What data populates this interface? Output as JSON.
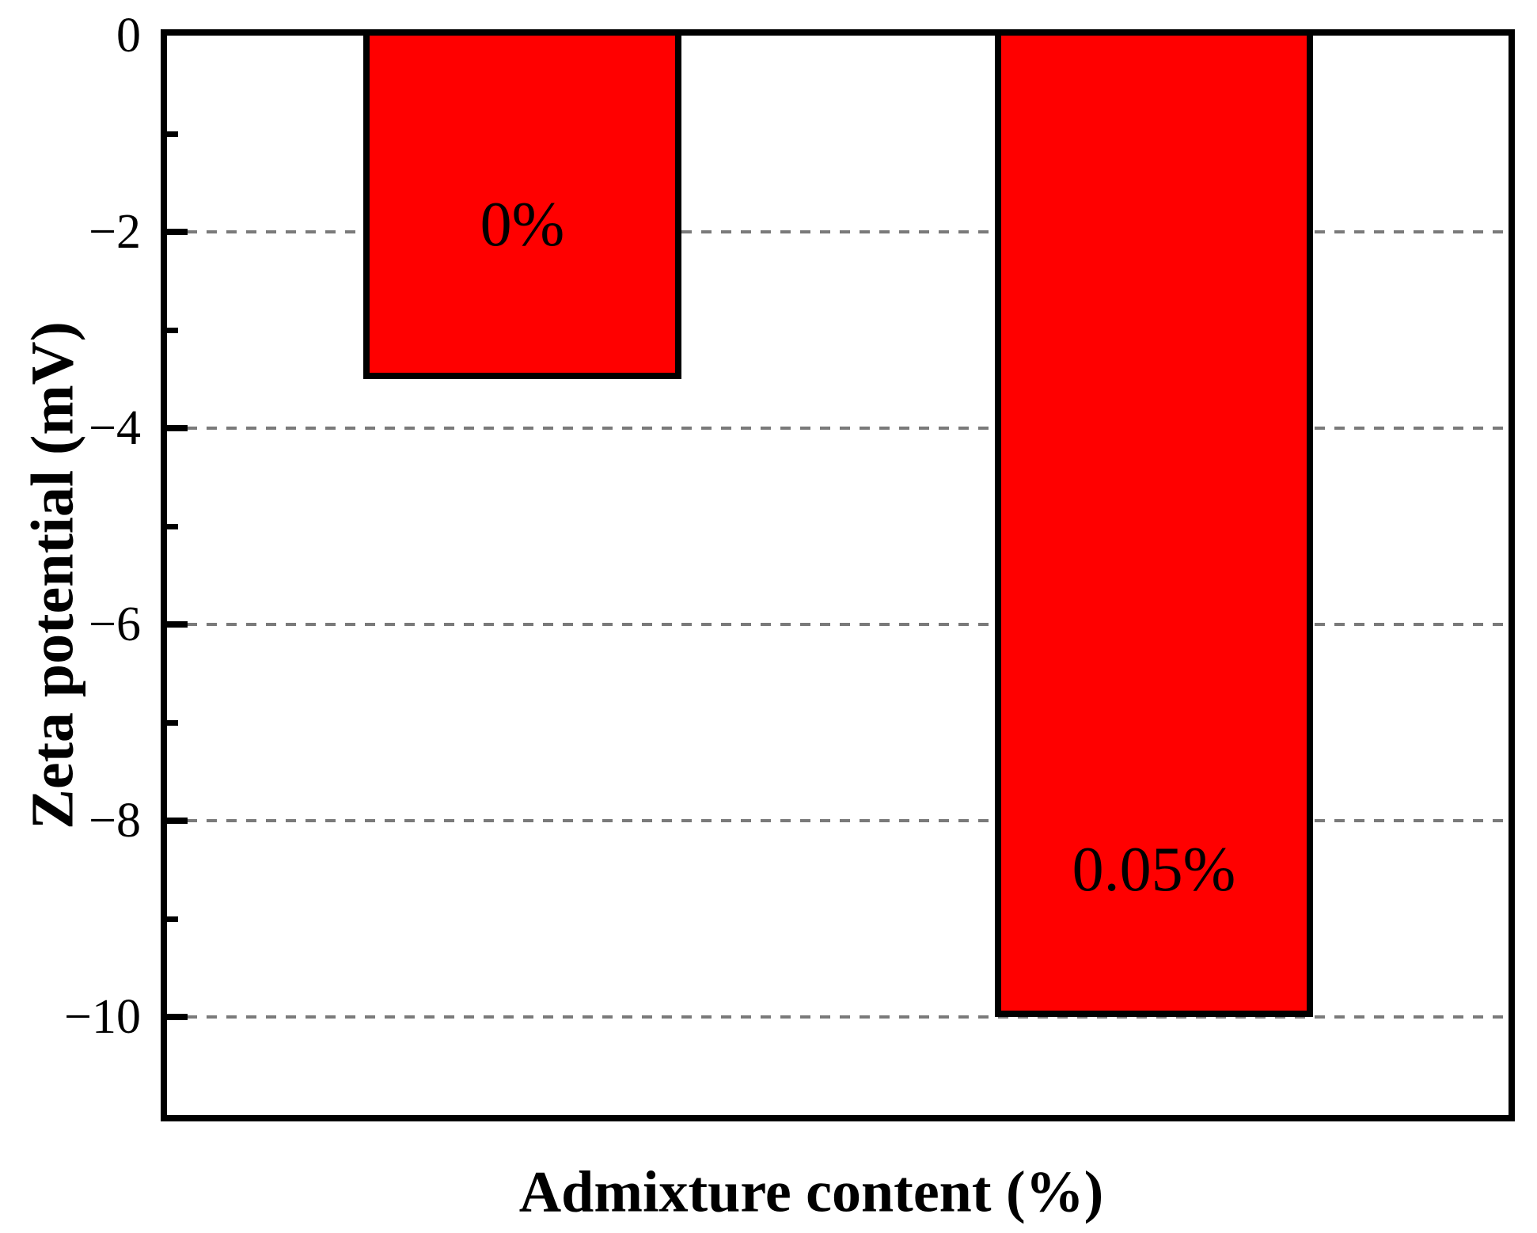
{
  "chart_data": {
    "type": "bar",
    "title": "",
    "xlabel": "Admixture content (%)",
    "ylabel": "Zeta potential (mV)",
    "categories": [
      "0%",
      "0.05%"
    ],
    "values": [
      -3.5,
      -10
    ],
    "bar_labels": [
      "0%",
      "0.05%"
    ],
    "bar_label_y": [
      -1.93,
      -8.5
    ],
    "ylim": [
      -11,
      0
    ],
    "yticks": [
      0,
      -2,
      -4,
      -6,
      -8,
      -10
    ],
    "ytick_labels": [
      "0",
      "−2",
      "−4",
      "−6",
      "−8",
      "−10"
    ],
    "minor_yticks": [
      -1,
      -3,
      -5,
      -7,
      -9
    ],
    "gridline_values": [
      -2,
      -4,
      -6,
      -8,
      -10
    ],
    "grid_style": "dashed",
    "legend": "none",
    "colors": {
      "bar_fill": "#ff0000",
      "bar_border": "#000000",
      "frame": "#000000",
      "gridline": "#7a7a7a",
      "text": "#000000",
      "background": "#ffffff"
    }
  }
}
